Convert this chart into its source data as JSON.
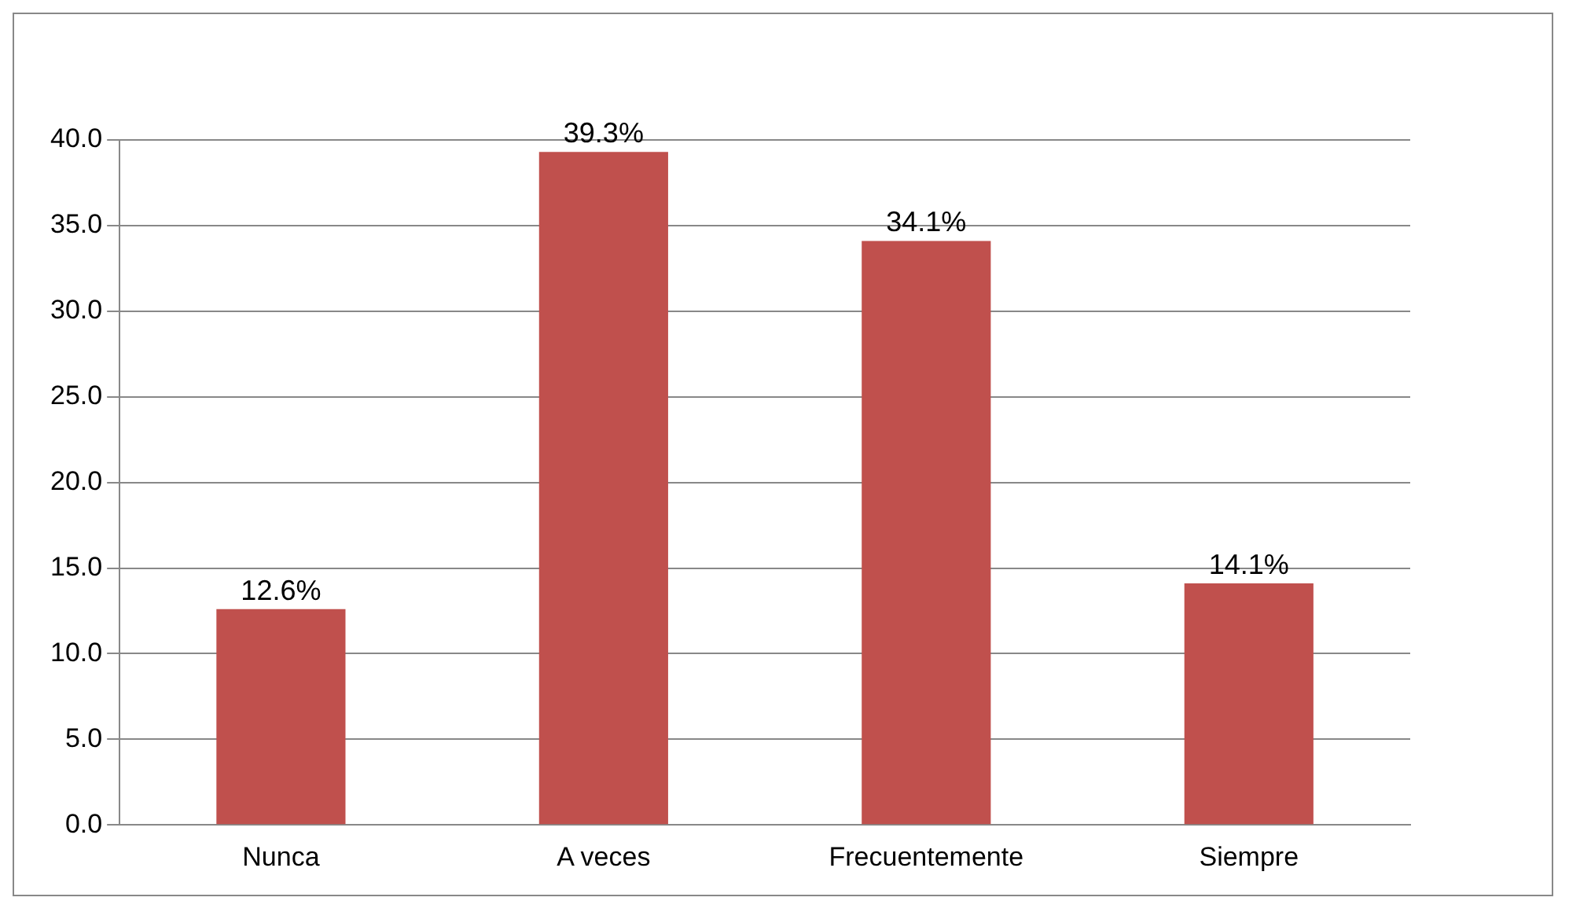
{
  "chart_data": {
    "type": "bar",
    "categories": [
      "Nunca",
      "A veces",
      "Frecuentemente",
      "Siempre"
    ],
    "values": [
      12.6,
      39.3,
      34.1,
      14.1
    ],
    "value_labels": [
      "12.6%",
      "39.3%",
      "34.1%",
      "14.1%"
    ],
    "color": "#c0504d",
    "ylim": [
      0,
      40
    ],
    "yticks": [
      {
        "value": 0,
        "label": "0.0"
      },
      {
        "value": 5,
        "label": "5.0"
      },
      {
        "value": 10,
        "label": "10.0"
      },
      {
        "value": 15,
        "label": "15.0"
      },
      {
        "value": 20,
        "label": "20.0"
      },
      {
        "value": 25,
        "label": "25.0"
      },
      {
        "value": 30,
        "label": "30.0"
      },
      {
        "value": 35,
        "label": "35.0"
      },
      {
        "value": 40,
        "label": "40.0"
      }
    ],
    "grid": "y",
    "legend": false
  }
}
